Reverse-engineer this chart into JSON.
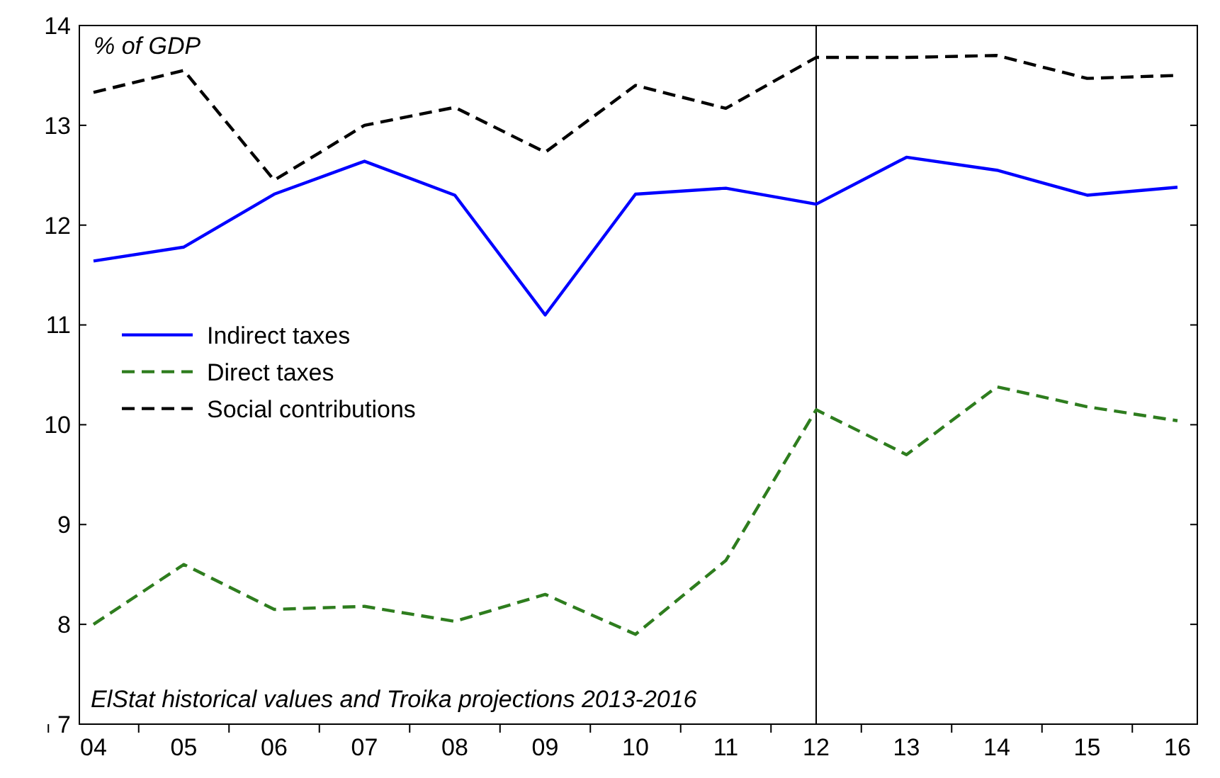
{
  "chart_data": {
    "type": "line",
    "categories": [
      "04",
      "05",
      "06",
      "07",
      "08",
      "09",
      "10",
      "11",
      "12",
      "13",
      "14",
      "15",
      "16"
    ],
    "series": [
      {
        "name": "Indirect taxes",
        "color": "#0000ff",
        "line_style": "solid",
        "values": [
          11.64,
          11.78,
          12.31,
          12.64,
          12.3,
          11.1,
          12.31,
          12.37,
          12.21,
          12.68,
          12.55,
          12.3,
          12.38
        ]
      },
      {
        "name": "Direct taxes",
        "color": "#2e7d1e",
        "line_style": "dashed",
        "values": [
          8.0,
          8.6,
          8.15,
          8.18,
          8.03,
          8.3,
          7.9,
          8.64,
          10.15,
          9.7,
          10.38,
          10.18,
          10.04
        ]
      },
      {
        "name": "Social contributions",
        "color": "#000000",
        "line_style": "dashed",
        "values": [
          13.33,
          13.55,
          12.45,
          13.0,
          13.18,
          12.73,
          13.4,
          13.17,
          13.68,
          13.68,
          13.7,
          13.47,
          13.5
        ]
      }
    ],
    "ylim": [
      7,
      14
    ],
    "yticks": [
      7,
      8,
      9,
      10,
      11,
      12,
      13,
      14
    ],
    "grid": false,
    "legend": "left",
    "marker": "none",
    "ref_lines": [
      {
        "axis": "x",
        "value": "12",
        "color": "#000000"
      }
    ],
    "annotations": [
      "% of GDP",
      "ElStat historical values and Troika projections 2013-2016"
    ]
  }
}
